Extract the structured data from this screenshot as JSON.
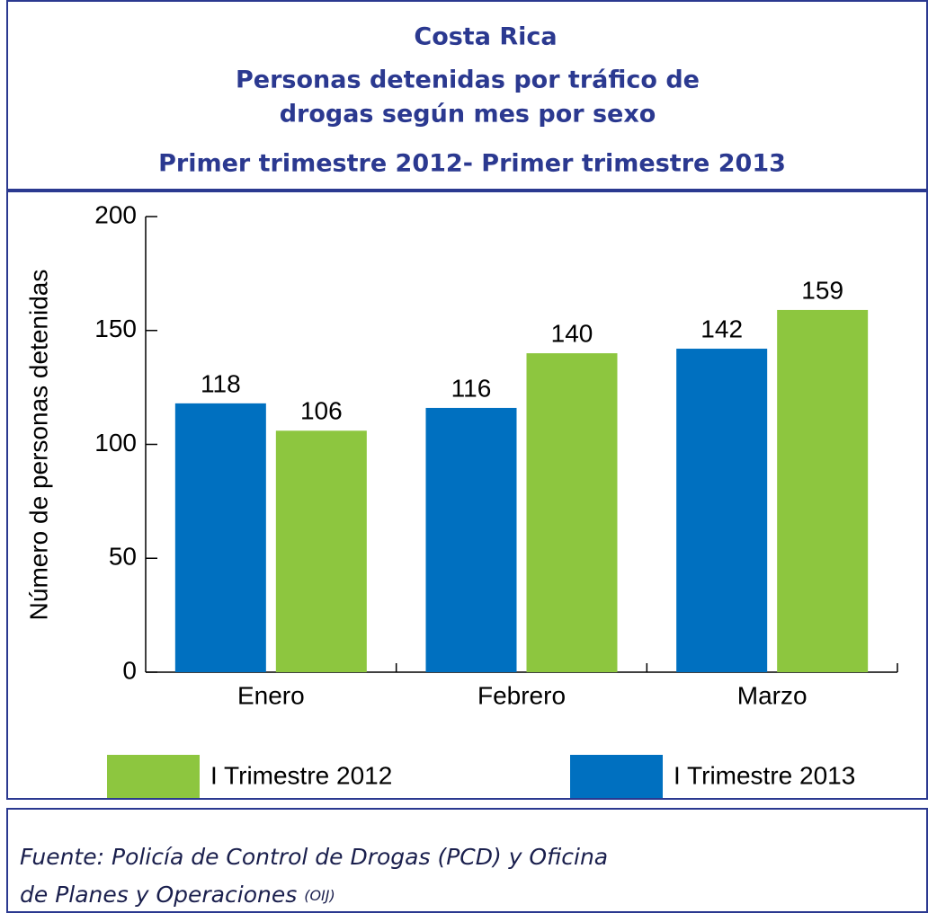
{
  "chart_data": {
    "type": "bar",
    "title": [
      "Costa Rica",
      "Personas detenidas  por tráfico de",
      "drogas según mes por sexo",
      "Primer trimestre 2012- Primer trimestre 2013"
    ],
    "y_label": "Número de personas detenidas",
    "categories": [
      "Enero",
      "Febrero",
      "Marzo"
    ],
    "series": [
      {
        "name": "I Trimestre 2013",
        "color": "#0070c0",
        "values": [
          118,
          116,
          142
        ]
      },
      {
        "name": "I Trimestre 2012",
        "color": "#8dc63f",
        "values": [
          106,
          140,
          159
        ]
      }
    ],
    "ylim": [
      0,
      200
    ],
    "yticks": [
      0,
      50,
      100,
      150,
      200
    ],
    "grid": false,
    "source": [
      "Fuente: Policía de Control de Drogas (PCD) y Oficina",
      "de Planes y Operaciones",
      "(OIJ)"
    ]
  }
}
